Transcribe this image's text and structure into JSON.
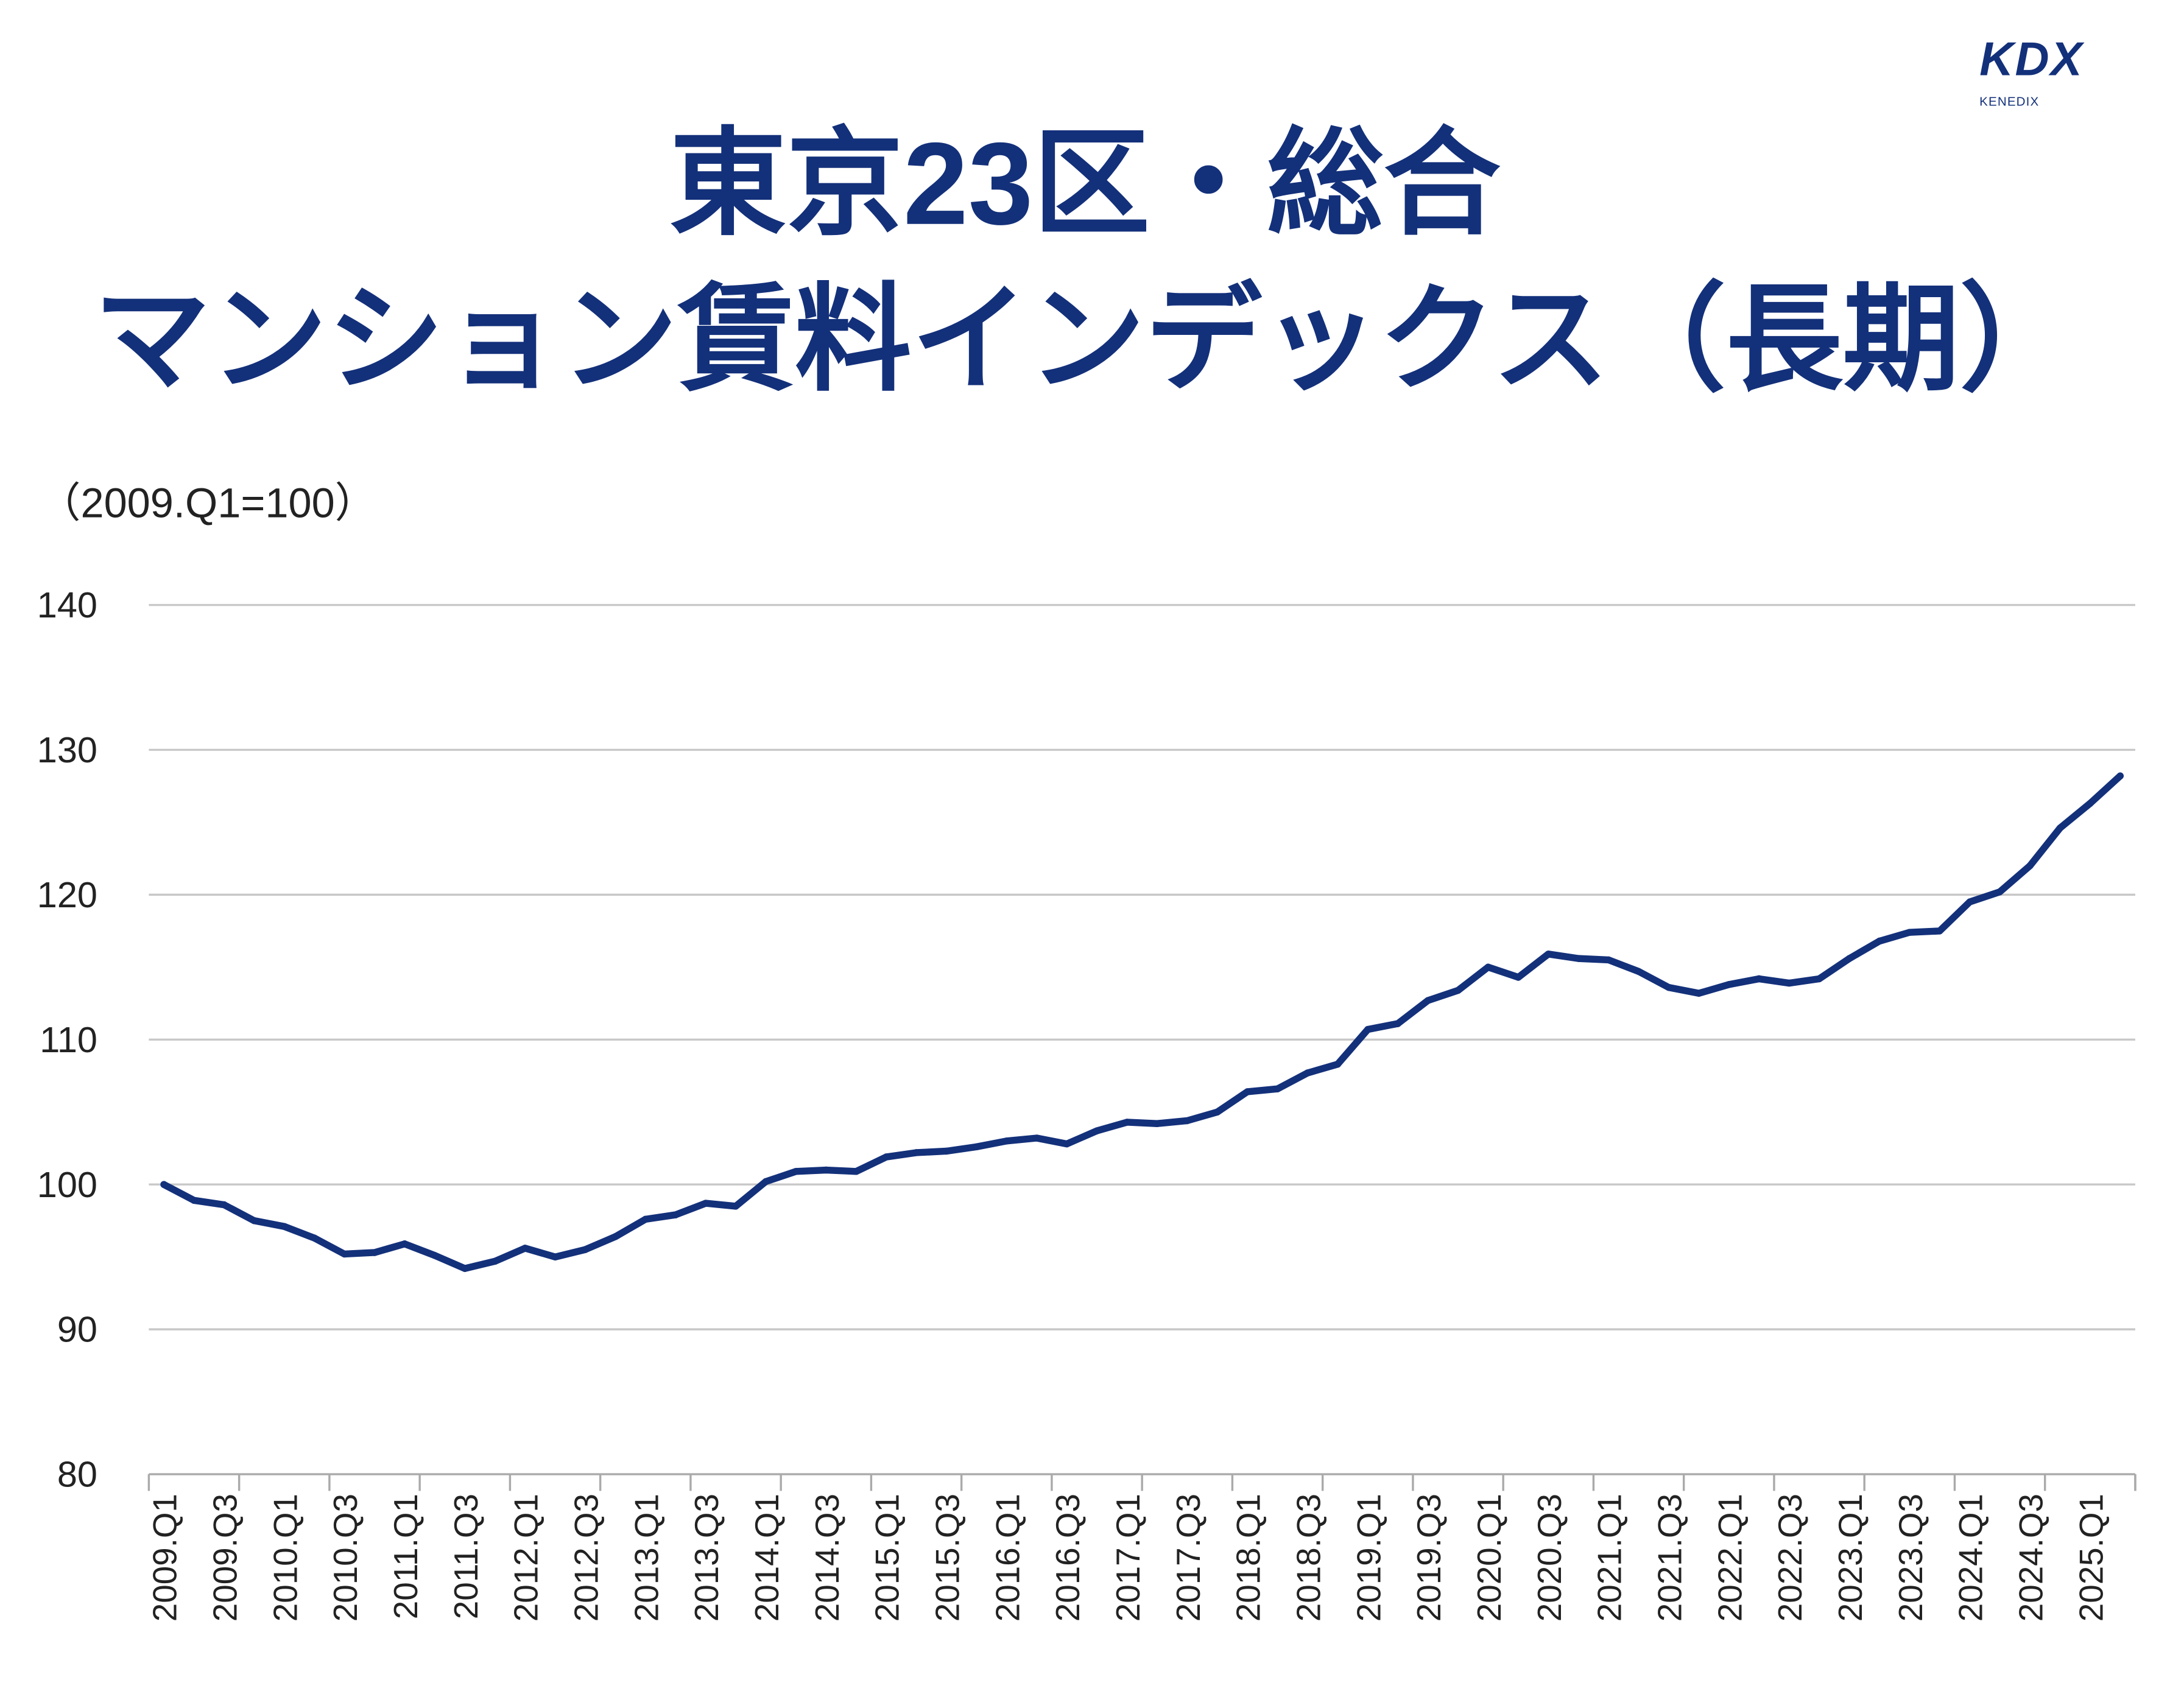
{
  "logo": {
    "brand": "KDX",
    "sub": "KENEDIX"
  },
  "title": {
    "line1": "東京23区・総合",
    "line2": "マンション賃料インデックス（長期）"
  },
  "chart_data": {
    "type": "line",
    "unit_label": "（2009.Q1=100）",
    "ylim": [
      80,
      140
    ],
    "yticks": [
      80,
      90,
      100,
      110,
      120,
      130,
      140
    ],
    "grid": true,
    "line_color": "#13307a",
    "x": [
      "2009.Q1",
      "2009.Q2",
      "2009.Q3",
      "2009.Q4",
      "2010.Q1",
      "2010.Q2",
      "2010.Q3",
      "2010.Q4",
      "2011.Q1",
      "2011.Q2",
      "2011.Q3",
      "2011.Q4",
      "2012.Q1",
      "2012.Q2",
      "2012.Q3",
      "2012.Q4",
      "2013.Q1",
      "2013.Q2",
      "2013.Q3",
      "2013.Q4",
      "2014.Q1",
      "2014.Q2",
      "2014.Q3",
      "2014.Q4",
      "2015.Q1",
      "2015.Q2",
      "2015.Q3",
      "2015.Q4",
      "2016.Q1",
      "2016.Q2",
      "2016.Q3",
      "2016.Q4",
      "2017.Q1",
      "2017.Q2",
      "2017.Q3",
      "2017.Q4",
      "2018.Q1",
      "2018.Q2",
      "2018.Q3",
      "2018.Q4",
      "2019.Q1",
      "2019.Q2",
      "2019.Q3",
      "2019.Q4",
      "2020.Q1",
      "2020.Q2",
      "2020.Q3",
      "2020.Q4",
      "2021.Q1",
      "2021.Q2",
      "2021.Q3",
      "2021.Q4",
      "2022.Q1",
      "2022.Q2",
      "2022.Q3",
      "2022.Q4",
      "2023.Q1",
      "2023.Q2",
      "2023.Q3",
      "2023.Q4",
      "2024.Q1",
      "2024.Q2",
      "2024.Q3",
      "2024.Q4",
      "2025.Q1",
      "2025.Q2"
    ],
    "values": [
      100,
      98.9,
      98.6,
      97.5,
      97.1,
      96.3,
      95.2,
      95.3,
      95.9,
      95.1,
      94.2,
      94.7,
      95.6,
      95.0,
      95.5,
      96.4,
      97.6,
      97.9,
      98.7,
      98.5,
      100.2,
      100.9,
      101.0,
      100.9,
      101.9,
      102.2,
      102.3,
      102.6,
      103.0,
      103.2,
      102.8,
      103.7,
      104.3,
      104.2,
      104.4,
      105.0,
      106.4,
      106.6,
      107.7,
      108.3,
      110.7,
      111.1,
      112.7,
      113.4,
      115.0,
      114.3,
      115.9,
      115.6,
      115.5,
      114.7,
      113.6,
      113.2,
      113.8,
      114.2,
      113.9,
      114.2,
      115.6,
      116.8,
      117.4,
      117.5,
      119.5,
      120.2,
      122.0,
      124.6,
      126.3,
      128.2
    ],
    "xtick_labels": [
      "2009.Q1",
      "2009.Q3",
      "2010.Q1",
      "2010.Q3",
      "2011.Q1",
      "2011.Q3",
      "2012.Q1",
      "2012.Q3",
      "2013.Q1",
      "2013.Q3",
      "2014.Q1",
      "2014.Q3",
      "2015.Q1",
      "2015.Q3",
      "2016.Q1",
      "2016.Q3",
      "2017.Q1",
      "2017.Q3",
      "2018.Q1",
      "2018.Q3",
      "2019.Q1",
      "2019.Q3",
      "2020.Q1",
      "2020.Q3",
      "2021.Q1",
      "2021.Q3",
      "2022.Q1",
      "2022.Q3",
      "2023.Q1",
      "2023.Q3",
      "2024.Q1",
      "2024.Q3",
      "2025.Q1"
    ]
  }
}
